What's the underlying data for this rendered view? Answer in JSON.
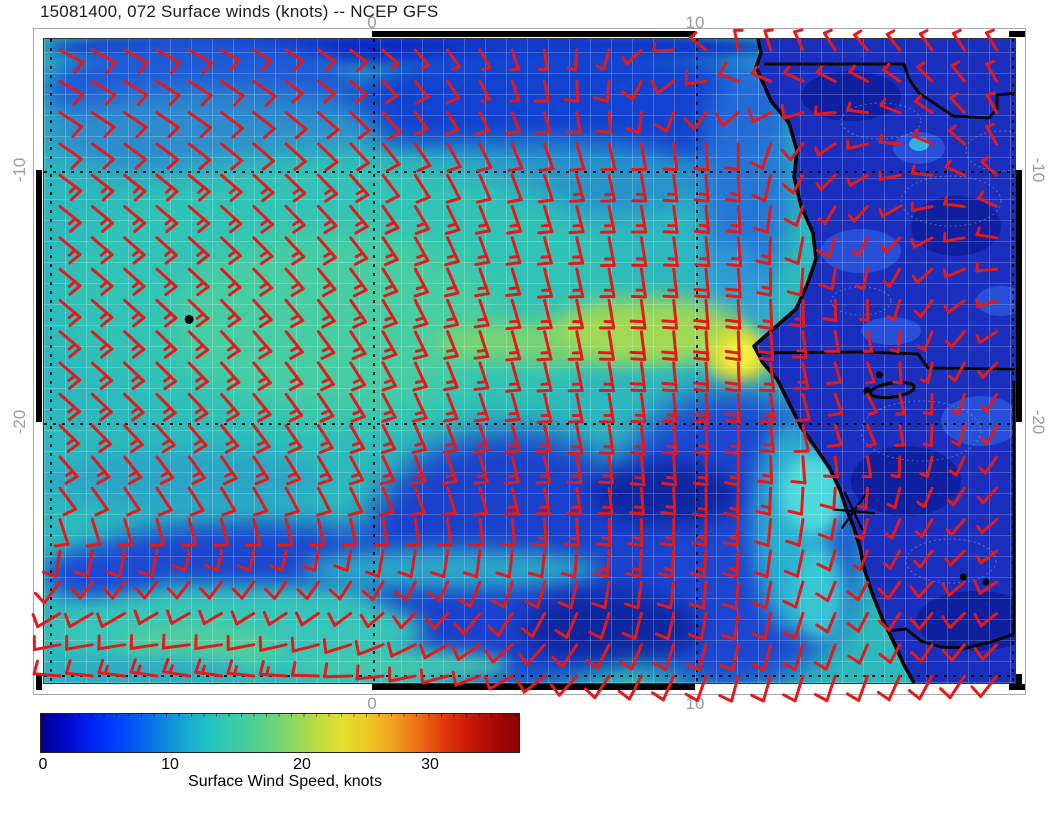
{
  "title": "15081400, 072 Surface winds (knots) -- NCEP GFS",
  "axes": {
    "lon0": "0",
    "lon10": "10",
    "lat10": "-10",
    "lat20": "-20",
    "lon_range": [
      -10.2,
      19.9
    ],
    "lat_range": [
      -4.8,
      -30.3
    ],
    "graticule_lons": [
      -10,
      0,
      10,
      20
    ],
    "graticule_lats": [
      -10,
      -20,
      -30
    ]
  },
  "colorbar": {
    "label": "Surface Wind Speed, knots",
    "tick_labels": [
      "0",
      "10",
      "20",
      "30"
    ],
    "tick_values": [
      0,
      10,
      20,
      30
    ],
    "min": 0,
    "max": 38
  },
  "chart_data": {
    "type": "heatmap",
    "subtype": "surface-wind-field-with-barbs",
    "title": "15081400, 072 Surface winds (knots) -- NCEP GFS",
    "model": "NCEP GFS",
    "init_and_fhr": "15081400, 072",
    "units": "knots",
    "lon_range": [
      -10.2,
      19.9
    ],
    "lat_range": [
      -30.3,
      -4.8
    ],
    "colorbar_range": [
      0,
      38
    ],
    "barb_color": "#e41a1a",
    "wind_grid": {
      "lons": [
        -9.7,
        -5.3,
        -1.0,
        3.3,
        7.7,
        11.4,
        15.4,
        19.8
      ],
      "lats": [
        -5.2,
        -8.8,
        -12.4,
        -16.0,
        -19.5,
        -23.1,
        -26.7,
        -29.8
      ],
      "wind_from_deg": [
        [
          118,
          120,
          125,
          150,
          200,
          355,
          320,
          330
        ],
        [
          125,
          128,
          135,
          155,
          168,
          180,
          260,
          340
        ],
        [
          130,
          132,
          140,
          160,
          170,
          175,
          210,
          290
        ],
        [
          130,
          135,
          145,
          162,
          172,
          178,
          170,
          250
        ],
        [
          132,
          138,
          148,
          162,
          172,
          178,
          150,
          210
        ],
        [
          145,
          150,
          155,
          165,
          175,
          182,
          190,
          230
        ],
        [
          225,
          225,
          220,
          205,
          190,
          185,
          210,
          240
        ],
        [
          275,
          280,
          270,
          250,
          210,
          195,
          200,
          220
        ]
      ],
      "speed_knots": [
        [
          10,
          10,
          8,
          6,
          5,
          5,
          5,
          5
        ],
        [
          12,
          12,
          12,
          10,
          12,
          12,
          5,
          5
        ],
        [
          14,
          15,
          14,
          14,
          15,
          15,
          5,
          5
        ],
        [
          15,
          15,
          15,
          15,
          18,
          22,
          5,
          5
        ],
        [
          14,
          14,
          14,
          14,
          16,
          18,
          5,
          5
        ],
        [
          12,
          12,
          12,
          12,
          14,
          15,
          5,
          5
        ],
        [
          10,
          8,
          8,
          10,
          12,
          12,
          8,
          8
        ],
        [
          12,
          14,
          12,
          10,
          12,
          12,
          10,
          10
        ]
      ]
    },
    "features": {
      "wind_speed_max": {
        "lon": 11.2,
        "lat": -16.5,
        "speed_knots": 22
      },
      "map_markers": [
        {
          "type": "island-dot",
          "lon": -5.7,
          "lat": -15.9
        },
        {
          "type": "star-marker",
          "lon": 14.9,
          "lat": -23.5
        },
        {
          "type": "pan-outline",
          "lon": 16.1,
          "lat": -18.7
        },
        {
          "type": "dot",
          "lon": 15.7,
          "lat": -18.1
        },
        {
          "type": "dot",
          "lon": 18.3,
          "lat": -26.1
        },
        {
          "type": "dot",
          "lon": 19.0,
          "lat": -26.3
        }
      ]
    }
  }
}
